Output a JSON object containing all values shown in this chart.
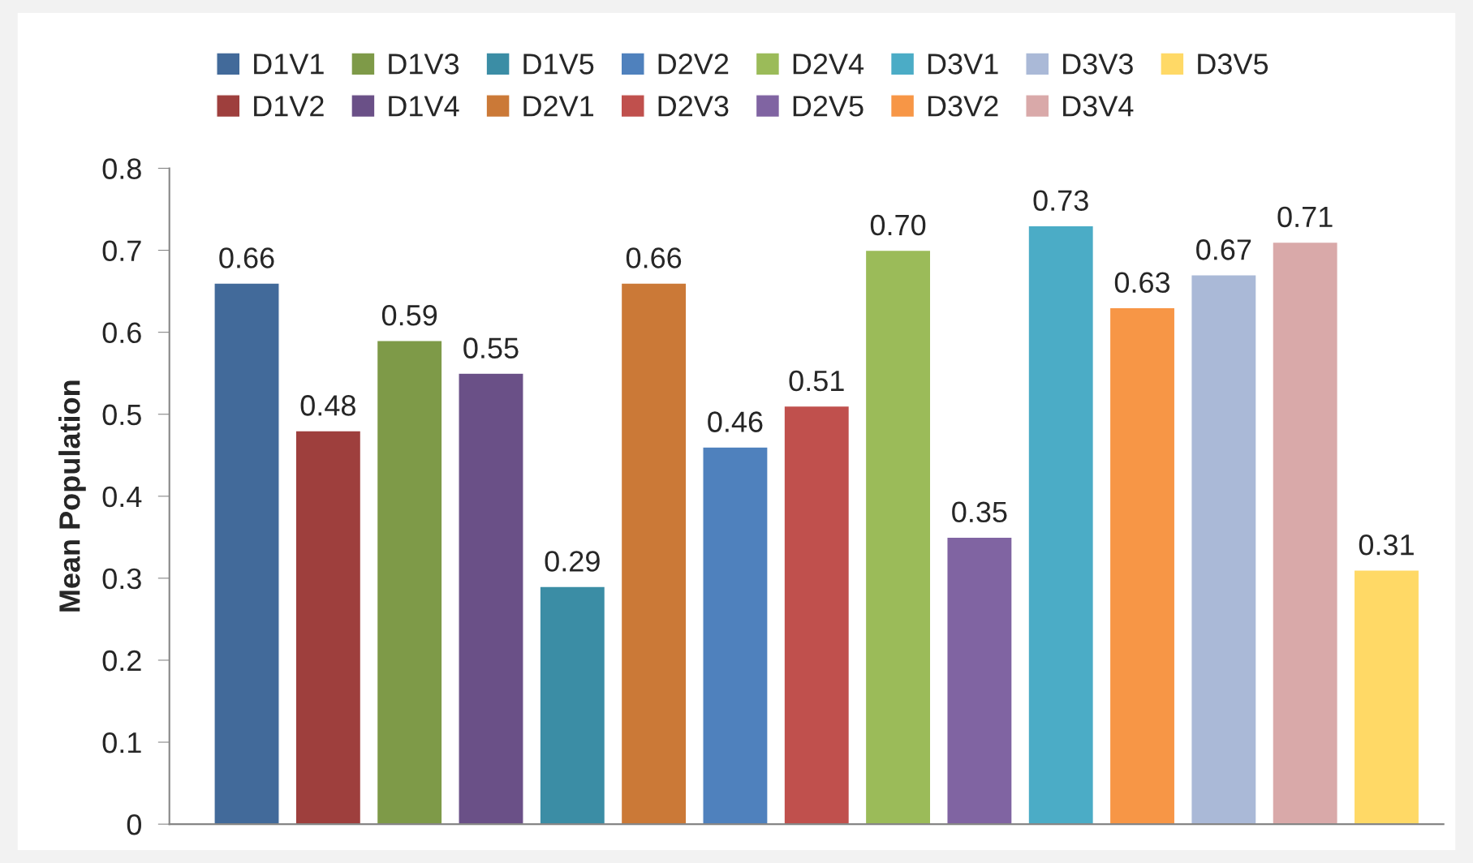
{
  "chart_data": {
    "type": "bar",
    "ylabel": "Mean Population",
    "categories": [
      null
    ],
    "ylim": [
      0,
      0.8
    ],
    "yticks": [
      0,
      0.1,
      0.2,
      0.3,
      0.4,
      0.5,
      0.6,
      0.7,
      0.8
    ],
    "grid": false,
    "legend": "top",
    "series": [
      {
        "name": "D1V1",
        "color": "#426a9a",
        "values": [
          0.66
        ],
        "value_labels": [
          "0.66"
        ]
      },
      {
        "name": "D1V2",
        "color": "#9e3f3d",
        "values": [
          0.48
        ],
        "value_labels": [
          "0.48"
        ]
      },
      {
        "name": "D1V3",
        "color": "#7e9a48",
        "values": [
          0.59
        ],
        "value_labels": [
          "0.59"
        ]
      },
      {
        "name": "D1V4",
        "color": "#6a5087",
        "values": [
          0.55
        ],
        "value_labels": [
          "0.55"
        ]
      },
      {
        "name": "D1V5",
        "color": "#3b8da5",
        "values": [
          0.29
        ],
        "value_labels": [
          "0.29"
        ]
      },
      {
        "name": "D2V1",
        "color": "#cb7937",
        "values": [
          0.66
        ],
        "value_labels": [
          "0.66"
        ]
      },
      {
        "name": "D2V2",
        "color": "#4f81bd",
        "values": [
          0.46
        ],
        "value_labels": [
          "0.46"
        ]
      },
      {
        "name": "D2V3",
        "color": "#c0504d",
        "values": [
          0.51
        ],
        "value_labels": [
          "0.51"
        ]
      },
      {
        "name": "D2V4",
        "color": "#9bbb59",
        "values": [
          0.7
        ],
        "value_labels": [
          "0.70"
        ]
      },
      {
        "name": "D2V5",
        "color": "#8064a2",
        "values": [
          0.35
        ],
        "value_labels": [
          "0.35"
        ]
      },
      {
        "name": "D3V1",
        "color": "#4bacc6",
        "values": [
          0.73
        ],
        "value_labels": [
          "0.73"
        ]
      },
      {
        "name": "D3V2",
        "color": "#f79646",
        "values": [
          0.63
        ],
        "value_labels": [
          "0.63"
        ]
      },
      {
        "name": "D3V3",
        "color": "#aab9d7",
        "values": [
          0.67
        ],
        "value_labels": [
          "0.67"
        ]
      },
      {
        "name": "D3V4",
        "color": "#d9a9a9",
        "values": [
          0.71
        ],
        "value_labels": [
          "0.71"
        ]
      },
      {
        "name": "D3V5",
        "color": "#ffd966",
        "values": [
          0.31
        ],
        "value_labels": [
          "0.31"
        ]
      }
    ]
  }
}
